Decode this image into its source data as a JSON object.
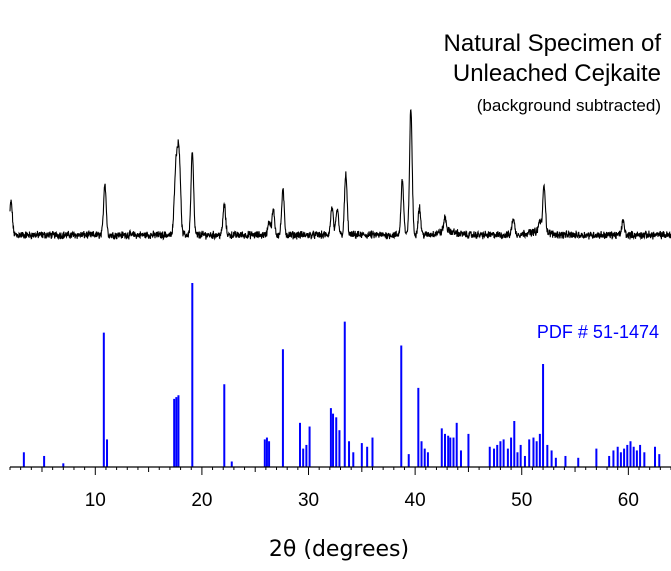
{
  "chart_data": {
    "type": "line",
    "xlabel": "2θ (degrees)",
    "xlim": [
      2,
      64
    ],
    "ylim": [
      0,
      100
    ],
    "grid": false,
    "x_ticks": [
      10,
      20,
      30,
      40,
      50,
      60
    ],
    "colors": {
      "pattern": "#000000",
      "reference": "#0000ff"
    },
    "annotations": {
      "specimen_title_line1": "Natural Specimen of",
      "specimen_title_line2": "Unleached Cejkaite",
      "specimen_note": "(background subtracted)",
      "reference_label": "PDF # 51-1474"
    },
    "series": [
      {
        "style": "line",
        "baseline": 0,
        "peaks": [
          {
            "x": 2.1,
            "y": 12
          },
          {
            "x": 10.9,
            "y": 19
          },
          {
            "x": 17.5,
            "y": 18
          },
          {
            "x": 17.7,
            "y": 22
          },
          {
            "x": 17.9,
            "y": 24
          },
          {
            "x": 19.1,
            "y": 30
          },
          {
            "x": 22.1,
            "y": 11
          },
          {
            "x": 26.3,
            "y": 5
          },
          {
            "x": 26.7,
            "y": 9
          },
          {
            "x": 27.6,
            "y": 16
          },
          {
            "x": 32.2,
            "y": 10
          },
          {
            "x": 32.7,
            "y": 9
          },
          {
            "x": 33.5,
            "y": 22
          },
          {
            "x": 38.8,
            "y": 20
          },
          {
            "x": 39.6,
            "y": 46
          },
          {
            "x": 40.4,
            "y": 10
          },
          {
            "x": 42.8,
            "y": 5
          },
          {
            "x": 49.2,
            "y": 6
          },
          {
            "x": 51.7,
            "y": 4
          },
          {
            "x": 52.1,
            "y": 17
          },
          {
            "x": 59.5,
            "y": 5
          }
        ]
      },
      {
        "style": "sticks",
        "baseline": 0,
        "x": [
          3.3,
          5.2,
          7.0,
          10.8,
          11.1,
          17.4,
          17.6,
          17.8,
          19.1,
          22.1,
          22.8,
          25.9,
          26.1,
          26.3,
          27.6,
          29.2,
          29.5,
          29.8,
          30.1,
          32.1,
          32.3,
          32.6,
          32.9,
          33.4,
          33.8,
          34.2,
          35.0,
          35.5,
          36.0,
          38.7,
          39.4,
          40.3,
          40.6,
          40.9,
          41.2,
          42.5,
          42.8,
          43.1,
          43.3,
          43.6,
          43.9,
          44.3,
          45.0,
          47.0,
          47.4,
          47.7,
          48.0,
          48.3,
          48.7,
          49.0,
          49.3,
          49.6,
          49.9,
          50.3,
          50.7,
          51.1,
          51.4,
          51.7,
          52.0,
          52.4,
          52.8,
          53.2,
          54.1,
          55.3,
          57.0,
          58.2,
          58.6,
          59.0,
          59.3,
          59.6,
          59.9,
          60.2,
          60.5,
          60.8,
          61.1,
          61.5,
          62.5,
          62.9
        ],
        "y": [
          8,
          6,
          2,
          73,
          15,
          37,
          38,
          39,
          100,
          45,
          3,
          15,
          16,
          14,
          64,
          24,
          10,
          12,
          22,
          32,
          29,
          27,
          20,
          79,
          14,
          8,
          13,
          11,
          16,
          66,
          7,
          43,
          14,
          10,
          8,
          21,
          18,
          17,
          16,
          16,
          24,
          9,
          18,
          11,
          10,
          12,
          14,
          15,
          10,
          16,
          25,
          8,
          12,
          6,
          15,
          16,
          14,
          18,
          56,
          12,
          9,
          5,
          6,
          5,
          10,
          6,
          9,
          11,
          8,
          10,
          12,
          14,
          11,
          9,
          12,
          8,
          11,
          7
        ]
      }
    ]
  }
}
